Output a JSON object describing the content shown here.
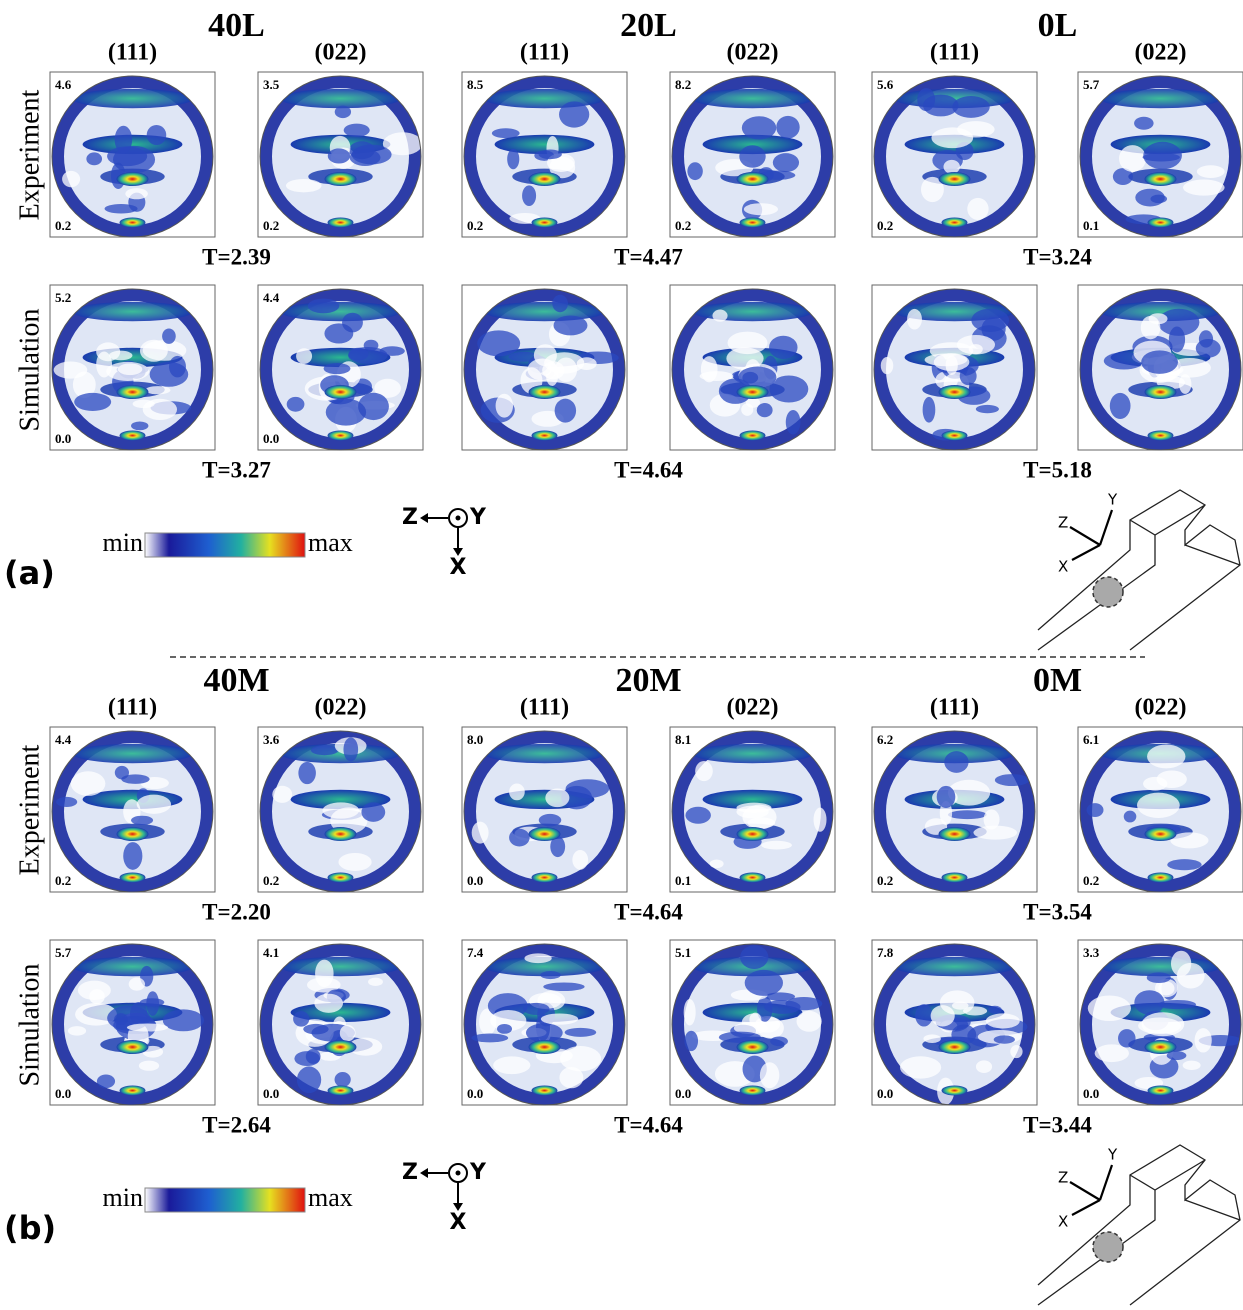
{
  "row_labels": [
    "Experiment",
    "Simulation"
  ],
  "colorbar": {
    "min": "min",
    "max": "max"
  },
  "axes": {
    "z": "Z",
    "y": "Y",
    "x": "X"
  },
  "panels": [
    {
      "label": "(a)",
      "groups": [
        {
          "title": "40L",
          "planes": [
            "(111)",
            "(022)"
          ],
          "experiment": {
            "figures": [
              {
                "max": "4.6",
                "min": "0.2"
              },
              {
                "max": "3.5",
                "min": "0.2"
              }
            ],
            "t": "T=2.39"
          },
          "simulation": {
            "figures": [
              {
                "max": "5.2",
                "min": "0.0"
              },
              {
                "max": "4.4",
                "min": "0.0"
              }
            ],
            "t": "T=3.27"
          }
        },
        {
          "title": "20L",
          "planes": [
            "(111)",
            "(022)"
          ],
          "experiment": {
            "figures": [
              {
                "max": "8.5",
                "min": "0.2"
              },
              {
                "max": "8.2",
                "min": "0.2"
              }
            ],
            "t": "T=4.47"
          },
          "simulation": {
            "figures": [
              {},
              {}
            ],
            "t": "T=4.64"
          }
        },
        {
          "title": "0L",
          "planes": [
            "(111)",
            "(022)"
          ],
          "experiment": {
            "figures": [
              {
                "max": "5.6",
                "min": "0.2"
              },
              {
                "max": "5.7",
                "min": "0.1"
              }
            ],
            "t": "T=3.24"
          },
          "simulation": {
            "figures": [
              {},
              {}
            ],
            "t": "T=5.18"
          }
        }
      ]
    },
    {
      "label": "(b)",
      "groups": [
        {
          "title": "40M",
          "planes": [
            "(111)",
            "(022)"
          ],
          "experiment": {
            "figures": [
              {
                "max": "4.4",
                "min": "0.2"
              },
              {
                "max": "3.6",
                "min": "0.2"
              }
            ],
            "t": "T=2.20"
          },
          "simulation": {
            "figures": [
              {
                "max": "5.7",
                "min": "0.0"
              },
              {
                "max": "4.1",
                "min": "0.0"
              }
            ],
            "t": "T=2.64"
          }
        },
        {
          "title": "20M",
          "planes": [
            "(111)",
            "(022)"
          ],
          "experiment": {
            "figures": [
              {
                "max": "8.0",
                "min": "0.0"
              },
              {
                "max": "8.1",
                "min": "0.1"
              }
            ],
            "t": "T=4.64"
          },
          "simulation": {
            "figures": [
              {
                "max": "7.4",
                "min": "0.0"
              },
              {
                "max": "5.1",
                "min": "0.0"
              }
            ],
            "t": "T=4.64"
          }
        },
        {
          "title": "0M",
          "planes": [
            "(111)",
            "(022)"
          ],
          "experiment": {
            "figures": [
              {
                "max": "6.2",
                "min": "0.2"
              },
              {
                "max": "6.1",
                "min": "0.2"
              }
            ],
            "t": "T=3.54"
          },
          "simulation": {
            "figures": [
              {
                "max": "7.8",
                "min": "0.0"
              },
              {
                "max": "3.3",
                "min": "0.0"
              }
            ],
            "t": "T=3.44"
          }
        }
      ]
    }
  ]
}
